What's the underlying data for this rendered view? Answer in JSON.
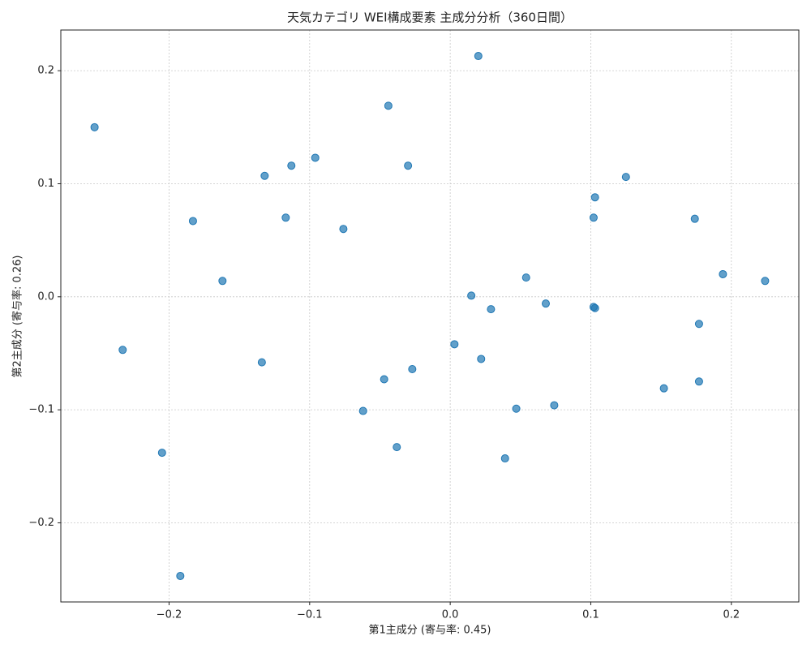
{
  "chart_data": {
    "type": "scatter",
    "title": "天気カテゴリ WEI構成要素 主成分分析（360日間）",
    "x_label": "第1主成分 (寄与率: 0.45)",
    "y_label": "第2主成分 (寄与率: 0.26)",
    "color": "#1f77b4",
    "grid": true,
    "xlim": [
      -0.277,
      0.248
    ],
    "ylim": [
      -0.27,
      0.236
    ],
    "xticks": [
      {
        "value": -0.2,
        "label": "−0.2"
      },
      {
        "value": -0.1,
        "label": "−0.1"
      },
      {
        "value": 0,
        "label": "0.0"
      },
      0.1,
      0.2
    ],
    "yticks": [
      {
        "value": -0.2,
        "label": "−0.2"
      },
      {
        "value": -0.1,
        "label": "−0.1"
      },
      {
        "value": 0,
        "label": "0.0"
      },
      0.1,
      0.2
    ],
    "x": [
      -0.253,
      0.02,
      -0.044,
      -0.096,
      -0.113,
      -0.132,
      -0.03,
      0.125,
      0.103,
      -0.183,
      -0.117,
      -0.076,
      0.102,
      0.174,
      -0.162,
      0.054,
      0.194,
      0.224,
      0.015,
      0.029,
      0.068,
      0.102,
      0.103,
      0.177,
      -0.233,
      0.003,
      0.022,
      -0.134,
      -0.027,
      -0.047,
      0.177,
      0.152,
      0.074,
      0.047,
      -0.062,
      -0.038,
      0.039,
      -0.205,
      -0.192
    ],
    "values": [
      0.15,
      0.213,
      0.169,
      0.123,
      0.116,
      0.107,
      0.116,
      0.106,
      0.088,
      0.067,
      0.07,
      0.06,
      0.07,
      0.069,
      0.014,
      0.017,
      0.02,
      0.014,
      0.001,
      -0.011,
      -0.006,
      -0.009,
      -0.01,
      -0.024,
      -0.047,
      -0.042,
      -0.055,
      -0.058,
      -0.064,
      -0.073,
      -0.075,
      -0.081,
      -0.096,
      -0.099,
      -0.101,
      -0.133,
      -0.143,
      -0.138,
      -0.247
    ]
  }
}
